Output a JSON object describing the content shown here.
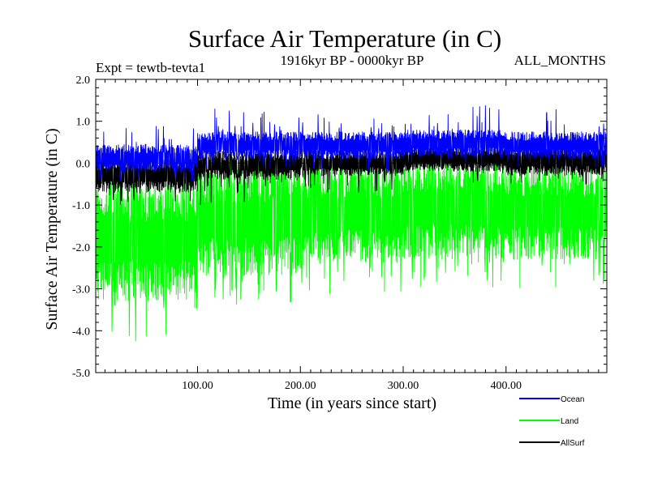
{
  "chart_data": {
    "type": "line",
    "title": "Surface Air Temperature (in C)",
    "subtitle_left": "Expt = tewtb-tevta1",
    "subtitle_center": "1916kyr BP - 0000kyr BP",
    "subtitle_right": "ALL_MONTHS",
    "xlabel": "Time (in years since start)",
    "ylabel": "Surface Air Temperature (in C)",
    "xlim": [
      1,
      498
    ],
    "ylim": [
      -5.0,
      2.0
    ],
    "x_ticks": [
      100,
      200,
      300,
      400
    ],
    "x_tick_labels": [
      "100.00",
      "200.00",
      "300.00",
      "400.00"
    ],
    "y_ticks": [
      2,
      1,
      0,
      -1,
      -2,
      -3,
      -4,
      -5
    ],
    "y_tick_labels": [
      "2.0",
      "1.0",
      "0.0",
      "-1.0",
      "-2.0",
      "-3.0",
      "-4.0",
      "-5.0"
    ],
    "zero_line": 0,
    "series": [
      {
        "name": "Land",
        "color": "#00ff00",
        "segments": [
          {
            "from": 1,
            "to": 100,
            "upper": -0.4,
            "lower": -3.3,
            "max": -0.1,
            "min": -4.25
          },
          {
            "from": 100,
            "to": 200,
            "upper": 0.0,
            "lower": -2.7,
            "max": 0.2,
            "min": -3.4
          },
          {
            "from": 200,
            "to": 300,
            "upper": 0.0,
            "lower": -2.4,
            "max": 0.2,
            "min": -3.2
          },
          {
            "from": 300,
            "to": 400,
            "upper": 0.1,
            "lower": -2.3,
            "max": 0.3,
            "min": -3.0
          },
          {
            "from": 400,
            "to": 498,
            "upper": 0.0,
            "lower": -2.3,
            "max": 0.2,
            "min": -3.0
          }
        ]
      },
      {
        "name": "AllSurf",
        "color": "#000000",
        "segments": [
          {
            "from": 1,
            "to": 100,
            "upper": 0.1,
            "lower": -0.7,
            "max": 0.3,
            "min": -1.0
          },
          {
            "from": 100,
            "to": 200,
            "upper": 0.3,
            "lower": -0.4,
            "max": 0.5,
            "min": -1.0
          },
          {
            "from": 200,
            "to": 300,
            "upper": 0.3,
            "lower": -0.3,
            "max": 0.5,
            "min": -0.7
          },
          {
            "from": 300,
            "to": 400,
            "upper": 0.4,
            "lower": -0.2,
            "max": 0.6,
            "min": -0.5
          },
          {
            "from": 400,
            "to": 498,
            "upper": 0.4,
            "lower": -0.3,
            "max": 0.6,
            "min": -0.5
          }
        ]
      },
      {
        "name": "Ocean",
        "color": "#0000ff",
        "segments": [
          {
            "from": 1,
            "to": 100,
            "upper": 0.45,
            "lower": -0.2,
            "max": 0.9,
            "min": -0.45
          },
          {
            "from": 100,
            "to": 200,
            "upper": 0.75,
            "lower": 0.1,
            "max": 1.3,
            "min": -0.2
          },
          {
            "from": 200,
            "to": 300,
            "upper": 0.75,
            "lower": 0.1,
            "max": 1.2,
            "min": -0.2
          },
          {
            "from": 300,
            "to": 400,
            "upper": 0.8,
            "lower": 0.15,
            "max": 1.4,
            "min": -0.1
          },
          {
            "from": 400,
            "to": 498,
            "upper": 0.75,
            "lower": 0.1,
            "max": 1.3,
            "min": -0.1
          }
        ]
      }
    ],
    "legend": {
      "placement": "bottom-right",
      "entries": [
        {
          "label": "Ocean",
          "color": "#0000ff"
        },
        {
          "label": "Land",
          "color": "#00ff00"
        },
        {
          "label": "AllSurf",
          "color": "#000000"
        }
      ]
    }
  }
}
